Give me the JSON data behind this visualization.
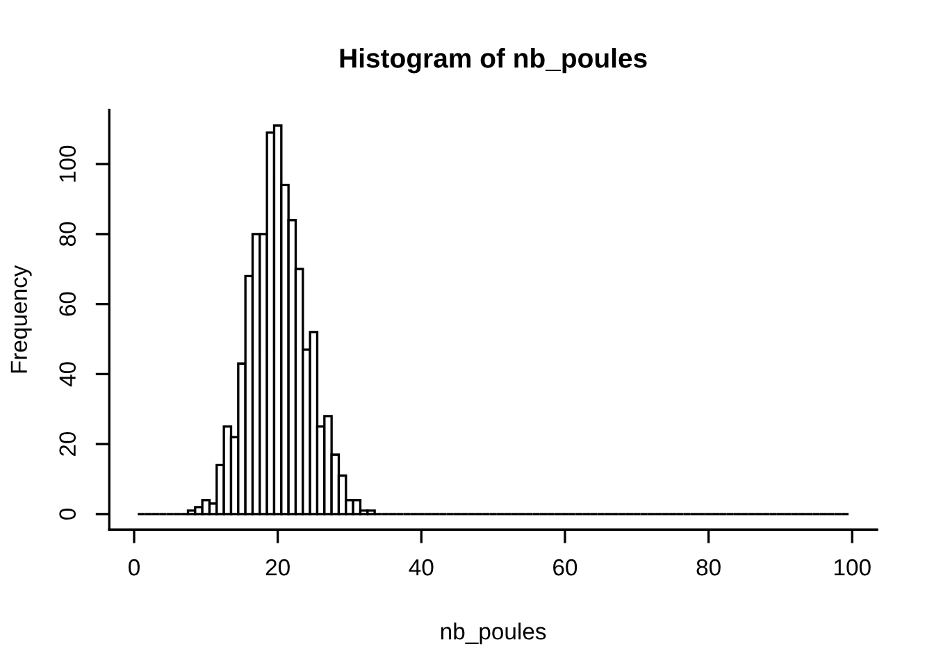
{
  "chart_data": {
    "type": "histogram",
    "title": "Histogram of nb_poules",
    "xlabel": "nb_poules",
    "ylabel": "Frequency",
    "bins": [
      0.5,
      1.5,
      2.5,
      3.5,
      4.5,
      5.5,
      6.5,
      7.5,
      8.5,
      9.5,
      10.5,
      11.5,
      12.5,
      13.5,
      14.5,
      15.5,
      16.5,
      17.5,
      18.5,
      19.5,
      20.5,
      21.5,
      22.5,
      23.5,
      24.5,
      25.5,
      26.5,
      27.5,
      28.5,
      29.5,
      30.5,
      31.5,
      32.5,
      33.5,
      34.5,
      35.5,
      36.5,
      37.5,
      38.5,
      39.5,
      40.5,
      41.5,
      42.5,
      43.5,
      44.5,
      45.5,
      46.5,
      47.5,
      48.5,
      49.5,
      50.5,
      51.5,
      52.5,
      53.5,
      54.5,
      55.5,
      56.5,
      57.5,
      58.5,
      59.5,
      60.5,
      61.5,
      62.5,
      63.5,
      64.5,
      65.5,
      66.5,
      67.5,
      68.5,
      69.5,
      70.5,
      71.5,
      72.5,
      73.5,
      74.5,
      75.5,
      76.5,
      77.5,
      78.5,
      79.5,
      80.5,
      81.5,
      82.5,
      83.5,
      84.5,
      85.5,
      86.5,
      87.5,
      88.5,
      89.5,
      90.5,
      91.5,
      92.5,
      93.5,
      94.5,
      95.5,
      96.5,
      97.5,
      98.5,
      99.5
    ],
    "values": [
      0,
      0,
      0,
      0,
      0,
      0,
      0,
      1,
      2,
      4,
      3,
      14,
      25,
      22,
      43,
      68,
      80,
      80,
      109,
      111,
      94,
      84,
      70,
      47,
      52,
      25,
      28,
      17,
      11,
      4,
      4,
      1,
      1,
      0,
      0,
      0,
      0,
      0,
      0,
      0,
      0,
      0,
      0,
      0,
      0,
      0,
      0,
      0,
      0,
      0,
      0,
      0,
      0,
      0,
      0,
      0,
      0,
      0,
      0,
      0,
      0,
      0,
      0,
      0,
      0,
      0,
      0,
      0,
      0,
      0,
      0,
      0,
      0,
      0,
      0,
      0,
      0,
      0,
      0,
      0,
      0,
      0,
      0,
      0,
      0,
      0,
      0,
      0,
      0,
      0,
      0,
      0,
      0,
      0,
      0,
      0,
      0,
      0,
      0
    ],
    "xlim": [
      -3.46,
      103.46
    ],
    "xticks": [
      0,
      20,
      40,
      60,
      80,
      100
    ],
    "ylim": [
      -4.44,
      115.44
    ],
    "yticks": [
      0,
      20,
      40,
      60,
      80,
      100
    ],
    "grid": false
  }
}
